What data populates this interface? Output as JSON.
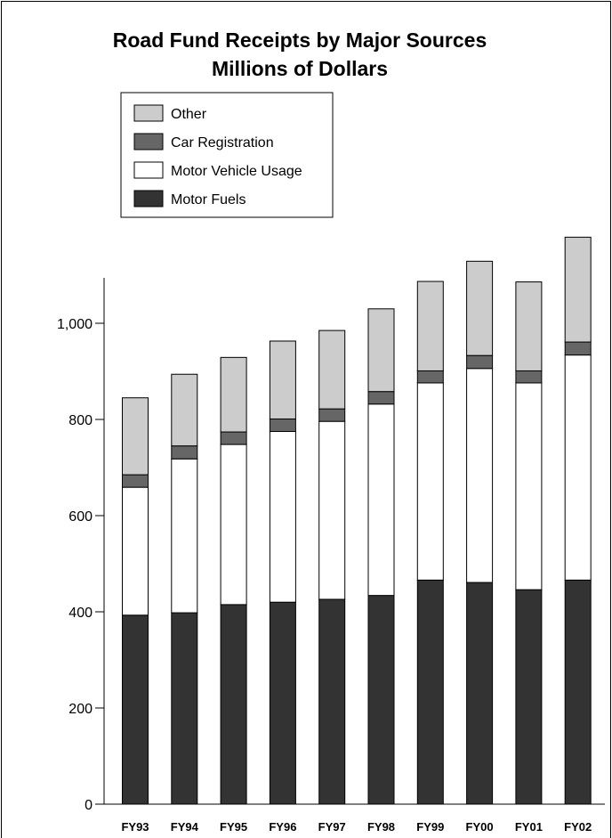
{
  "chart_data": {
    "type": "bar",
    "stacked": true,
    "title": "Road Fund Receipts by Major Sources",
    "subtitle": "Millions of Dollars",
    "xlabel": "",
    "ylabel": "",
    "ylim": [
      0,
      1200
    ],
    "yticks": [
      0,
      200,
      400,
      600,
      800,
      1000
    ],
    "ytick_labels": [
      "0",
      "200",
      "400",
      "600",
      "800",
      "1,000"
    ],
    "grid": false,
    "legend_position": "top-left",
    "categories": [
      "FY93",
      "FY94",
      "FY95",
      "FY96",
      "FY97",
      "FY98",
      "FY99",
      "FY00",
      "FY01",
      "FY02"
    ],
    "series": [
      {
        "name": "Motor Fuels",
        "color": "#333333",
        "values": [
          393,
          398,
          415,
          420,
          426,
          434,
          466,
          461,
          446,
          466
        ]
      },
      {
        "name": "Motor Vehicle Usage",
        "color": "#ffffff",
        "values": [
          266,
          320,
          333,
          355,
          370,
          398,
          410,
          445,
          430,
          468
        ]
      },
      {
        "name": "Car Registration",
        "color": "#666666",
        "values": [
          26,
          27,
          26,
          26,
          26,
          26,
          25,
          27,
          25,
          27
        ]
      },
      {
        "name": "Other",
        "color": "#cccccc",
        "values": [
          160,
          149,
          155,
          162,
          163,
          172,
          186,
          196,
          185,
          218
        ]
      }
    ],
    "legend_order": [
      "Other",
      "Car Registration",
      "Motor Vehicle Usage",
      "Motor Fuels"
    ]
  }
}
